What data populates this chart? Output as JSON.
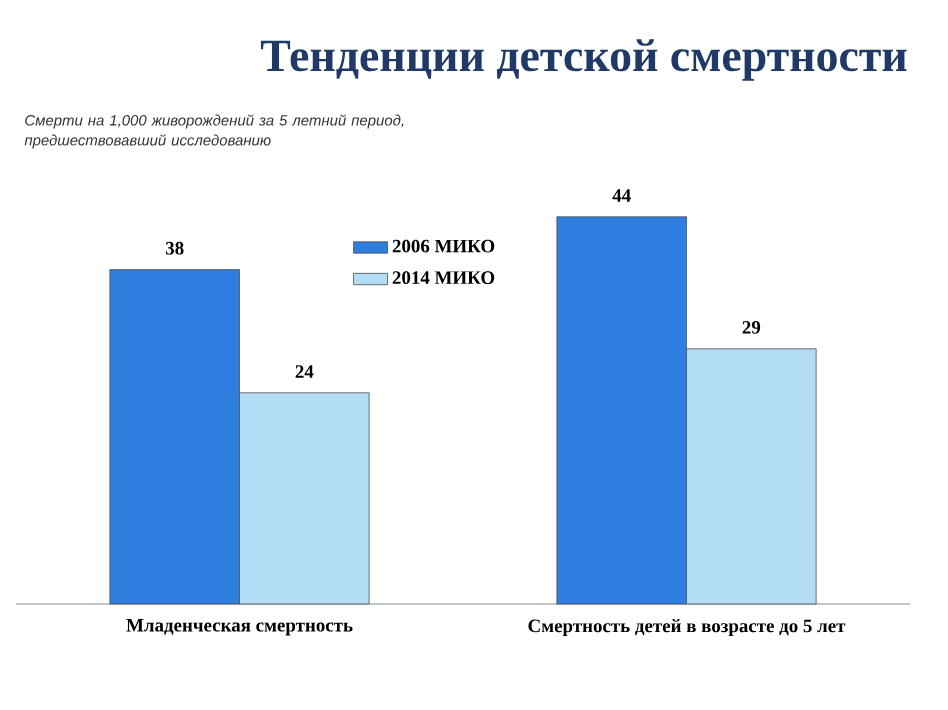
{
  "chart_data": {
    "type": "bar",
    "title": "Тенденции детской смертности",
    "subtitle": "Смерти на 1,000 живорождений за 5 летний период, предшествовавший исследованию",
    "categories": [
      "Младенческая смертность",
      "Смертность детей в возрасте до 5 лет"
    ],
    "series": [
      {
        "name": "2006 МИКО",
        "color": "#2f7fe0",
        "values": [
          38,
          44
        ]
      },
      {
        "name": "2014 МИКО",
        "color": "#b3dcf5",
        "values": [
          24,
          29
        ]
      }
    ],
    "data_labels": true,
    "legend": "top",
    "tick_labels": "x"
  }
}
